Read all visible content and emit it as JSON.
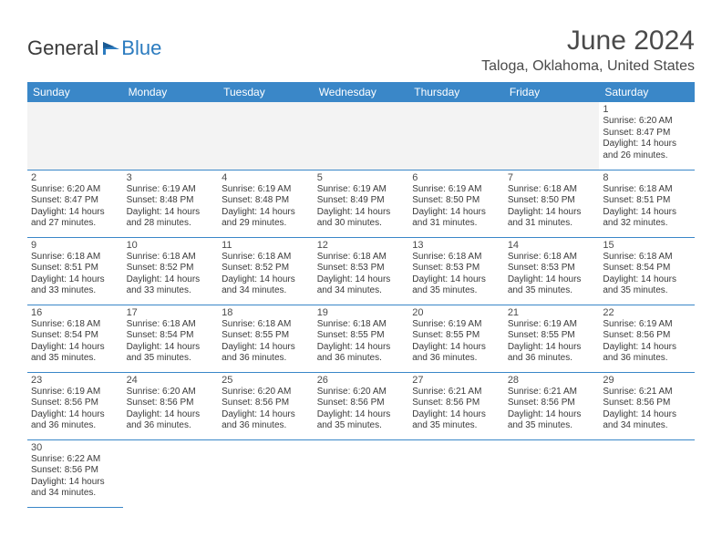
{
  "logo": {
    "text1": "General",
    "text2": "Blue"
  },
  "title": "June 2024",
  "location": "Taloga, Oklahoma, United States",
  "dayHeaders": [
    "Sunday",
    "Monday",
    "Tuesday",
    "Wednesday",
    "Thursday",
    "Friday",
    "Saturday"
  ],
  "colors": {
    "headerBg": "#3a87c8",
    "headerText": "#ffffff",
    "border": "#3a87c8",
    "emptyBg": "#f3f3f3",
    "text": "#3a3a3a",
    "logoBlue": "#2b7bbf"
  },
  "weeks": [
    [
      {
        "empty": true
      },
      {
        "empty": true
      },
      {
        "empty": true
      },
      {
        "empty": true
      },
      {
        "empty": true
      },
      {
        "empty": true
      },
      {
        "num": "1",
        "sunrise": "Sunrise: 6:20 AM",
        "sunset": "Sunset: 8:47 PM",
        "daylight1": "Daylight: 14 hours",
        "daylight2": "and 26 minutes."
      }
    ],
    [
      {
        "num": "2",
        "sunrise": "Sunrise: 6:20 AM",
        "sunset": "Sunset: 8:47 PM",
        "daylight1": "Daylight: 14 hours",
        "daylight2": "and 27 minutes."
      },
      {
        "num": "3",
        "sunrise": "Sunrise: 6:19 AM",
        "sunset": "Sunset: 8:48 PM",
        "daylight1": "Daylight: 14 hours",
        "daylight2": "and 28 minutes."
      },
      {
        "num": "4",
        "sunrise": "Sunrise: 6:19 AM",
        "sunset": "Sunset: 8:48 PM",
        "daylight1": "Daylight: 14 hours",
        "daylight2": "and 29 minutes."
      },
      {
        "num": "5",
        "sunrise": "Sunrise: 6:19 AM",
        "sunset": "Sunset: 8:49 PM",
        "daylight1": "Daylight: 14 hours",
        "daylight2": "and 30 minutes."
      },
      {
        "num": "6",
        "sunrise": "Sunrise: 6:19 AM",
        "sunset": "Sunset: 8:50 PM",
        "daylight1": "Daylight: 14 hours",
        "daylight2": "and 31 minutes."
      },
      {
        "num": "7",
        "sunrise": "Sunrise: 6:18 AM",
        "sunset": "Sunset: 8:50 PM",
        "daylight1": "Daylight: 14 hours",
        "daylight2": "and 31 minutes."
      },
      {
        "num": "8",
        "sunrise": "Sunrise: 6:18 AM",
        "sunset": "Sunset: 8:51 PM",
        "daylight1": "Daylight: 14 hours",
        "daylight2": "and 32 minutes."
      }
    ],
    [
      {
        "num": "9",
        "sunrise": "Sunrise: 6:18 AM",
        "sunset": "Sunset: 8:51 PM",
        "daylight1": "Daylight: 14 hours",
        "daylight2": "and 33 minutes."
      },
      {
        "num": "10",
        "sunrise": "Sunrise: 6:18 AM",
        "sunset": "Sunset: 8:52 PM",
        "daylight1": "Daylight: 14 hours",
        "daylight2": "and 33 minutes."
      },
      {
        "num": "11",
        "sunrise": "Sunrise: 6:18 AM",
        "sunset": "Sunset: 8:52 PM",
        "daylight1": "Daylight: 14 hours",
        "daylight2": "and 34 minutes."
      },
      {
        "num": "12",
        "sunrise": "Sunrise: 6:18 AM",
        "sunset": "Sunset: 8:53 PM",
        "daylight1": "Daylight: 14 hours",
        "daylight2": "and 34 minutes."
      },
      {
        "num": "13",
        "sunrise": "Sunrise: 6:18 AM",
        "sunset": "Sunset: 8:53 PM",
        "daylight1": "Daylight: 14 hours",
        "daylight2": "and 35 minutes."
      },
      {
        "num": "14",
        "sunrise": "Sunrise: 6:18 AM",
        "sunset": "Sunset: 8:53 PM",
        "daylight1": "Daylight: 14 hours",
        "daylight2": "and 35 minutes."
      },
      {
        "num": "15",
        "sunrise": "Sunrise: 6:18 AM",
        "sunset": "Sunset: 8:54 PM",
        "daylight1": "Daylight: 14 hours",
        "daylight2": "and 35 minutes."
      }
    ],
    [
      {
        "num": "16",
        "sunrise": "Sunrise: 6:18 AM",
        "sunset": "Sunset: 8:54 PM",
        "daylight1": "Daylight: 14 hours",
        "daylight2": "and 35 minutes."
      },
      {
        "num": "17",
        "sunrise": "Sunrise: 6:18 AM",
        "sunset": "Sunset: 8:54 PM",
        "daylight1": "Daylight: 14 hours",
        "daylight2": "and 35 minutes."
      },
      {
        "num": "18",
        "sunrise": "Sunrise: 6:18 AM",
        "sunset": "Sunset: 8:55 PM",
        "daylight1": "Daylight: 14 hours",
        "daylight2": "and 36 minutes."
      },
      {
        "num": "19",
        "sunrise": "Sunrise: 6:18 AM",
        "sunset": "Sunset: 8:55 PM",
        "daylight1": "Daylight: 14 hours",
        "daylight2": "and 36 minutes."
      },
      {
        "num": "20",
        "sunrise": "Sunrise: 6:19 AM",
        "sunset": "Sunset: 8:55 PM",
        "daylight1": "Daylight: 14 hours",
        "daylight2": "and 36 minutes."
      },
      {
        "num": "21",
        "sunrise": "Sunrise: 6:19 AM",
        "sunset": "Sunset: 8:55 PM",
        "daylight1": "Daylight: 14 hours",
        "daylight2": "and 36 minutes."
      },
      {
        "num": "22",
        "sunrise": "Sunrise: 6:19 AM",
        "sunset": "Sunset: 8:56 PM",
        "daylight1": "Daylight: 14 hours",
        "daylight2": "and 36 minutes."
      }
    ],
    [
      {
        "num": "23",
        "sunrise": "Sunrise: 6:19 AM",
        "sunset": "Sunset: 8:56 PM",
        "daylight1": "Daylight: 14 hours",
        "daylight2": "and 36 minutes."
      },
      {
        "num": "24",
        "sunrise": "Sunrise: 6:20 AM",
        "sunset": "Sunset: 8:56 PM",
        "daylight1": "Daylight: 14 hours",
        "daylight2": "and 36 minutes."
      },
      {
        "num": "25",
        "sunrise": "Sunrise: 6:20 AM",
        "sunset": "Sunset: 8:56 PM",
        "daylight1": "Daylight: 14 hours",
        "daylight2": "and 36 minutes."
      },
      {
        "num": "26",
        "sunrise": "Sunrise: 6:20 AM",
        "sunset": "Sunset: 8:56 PM",
        "daylight1": "Daylight: 14 hours",
        "daylight2": "and 35 minutes."
      },
      {
        "num": "27",
        "sunrise": "Sunrise: 6:21 AM",
        "sunset": "Sunset: 8:56 PM",
        "daylight1": "Daylight: 14 hours",
        "daylight2": "and 35 minutes."
      },
      {
        "num": "28",
        "sunrise": "Sunrise: 6:21 AM",
        "sunset": "Sunset: 8:56 PM",
        "daylight1": "Daylight: 14 hours",
        "daylight2": "and 35 minutes."
      },
      {
        "num": "29",
        "sunrise": "Sunrise: 6:21 AM",
        "sunset": "Sunset: 8:56 PM",
        "daylight1": "Daylight: 14 hours",
        "daylight2": "and 34 minutes."
      }
    ],
    [
      {
        "num": "30",
        "sunrise": "Sunrise: 6:22 AM",
        "sunset": "Sunset: 8:56 PM",
        "daylight1": "Daylight: 14 hours",
        "daylight2": "and 34 minutes."
      },
      {
        "empty": true,
        "blank": true
      },
      {
        "empty": true,
        "blank": true
      },
      {
        "empty": true,
        "blank": true
      },
      {
        "empty": true,
        "blank": true
      },
      {
        "empty": true,
        "blank": true
      },
      {
        "empty": true,
        "blank": true
      }
    ]
  ]
}
